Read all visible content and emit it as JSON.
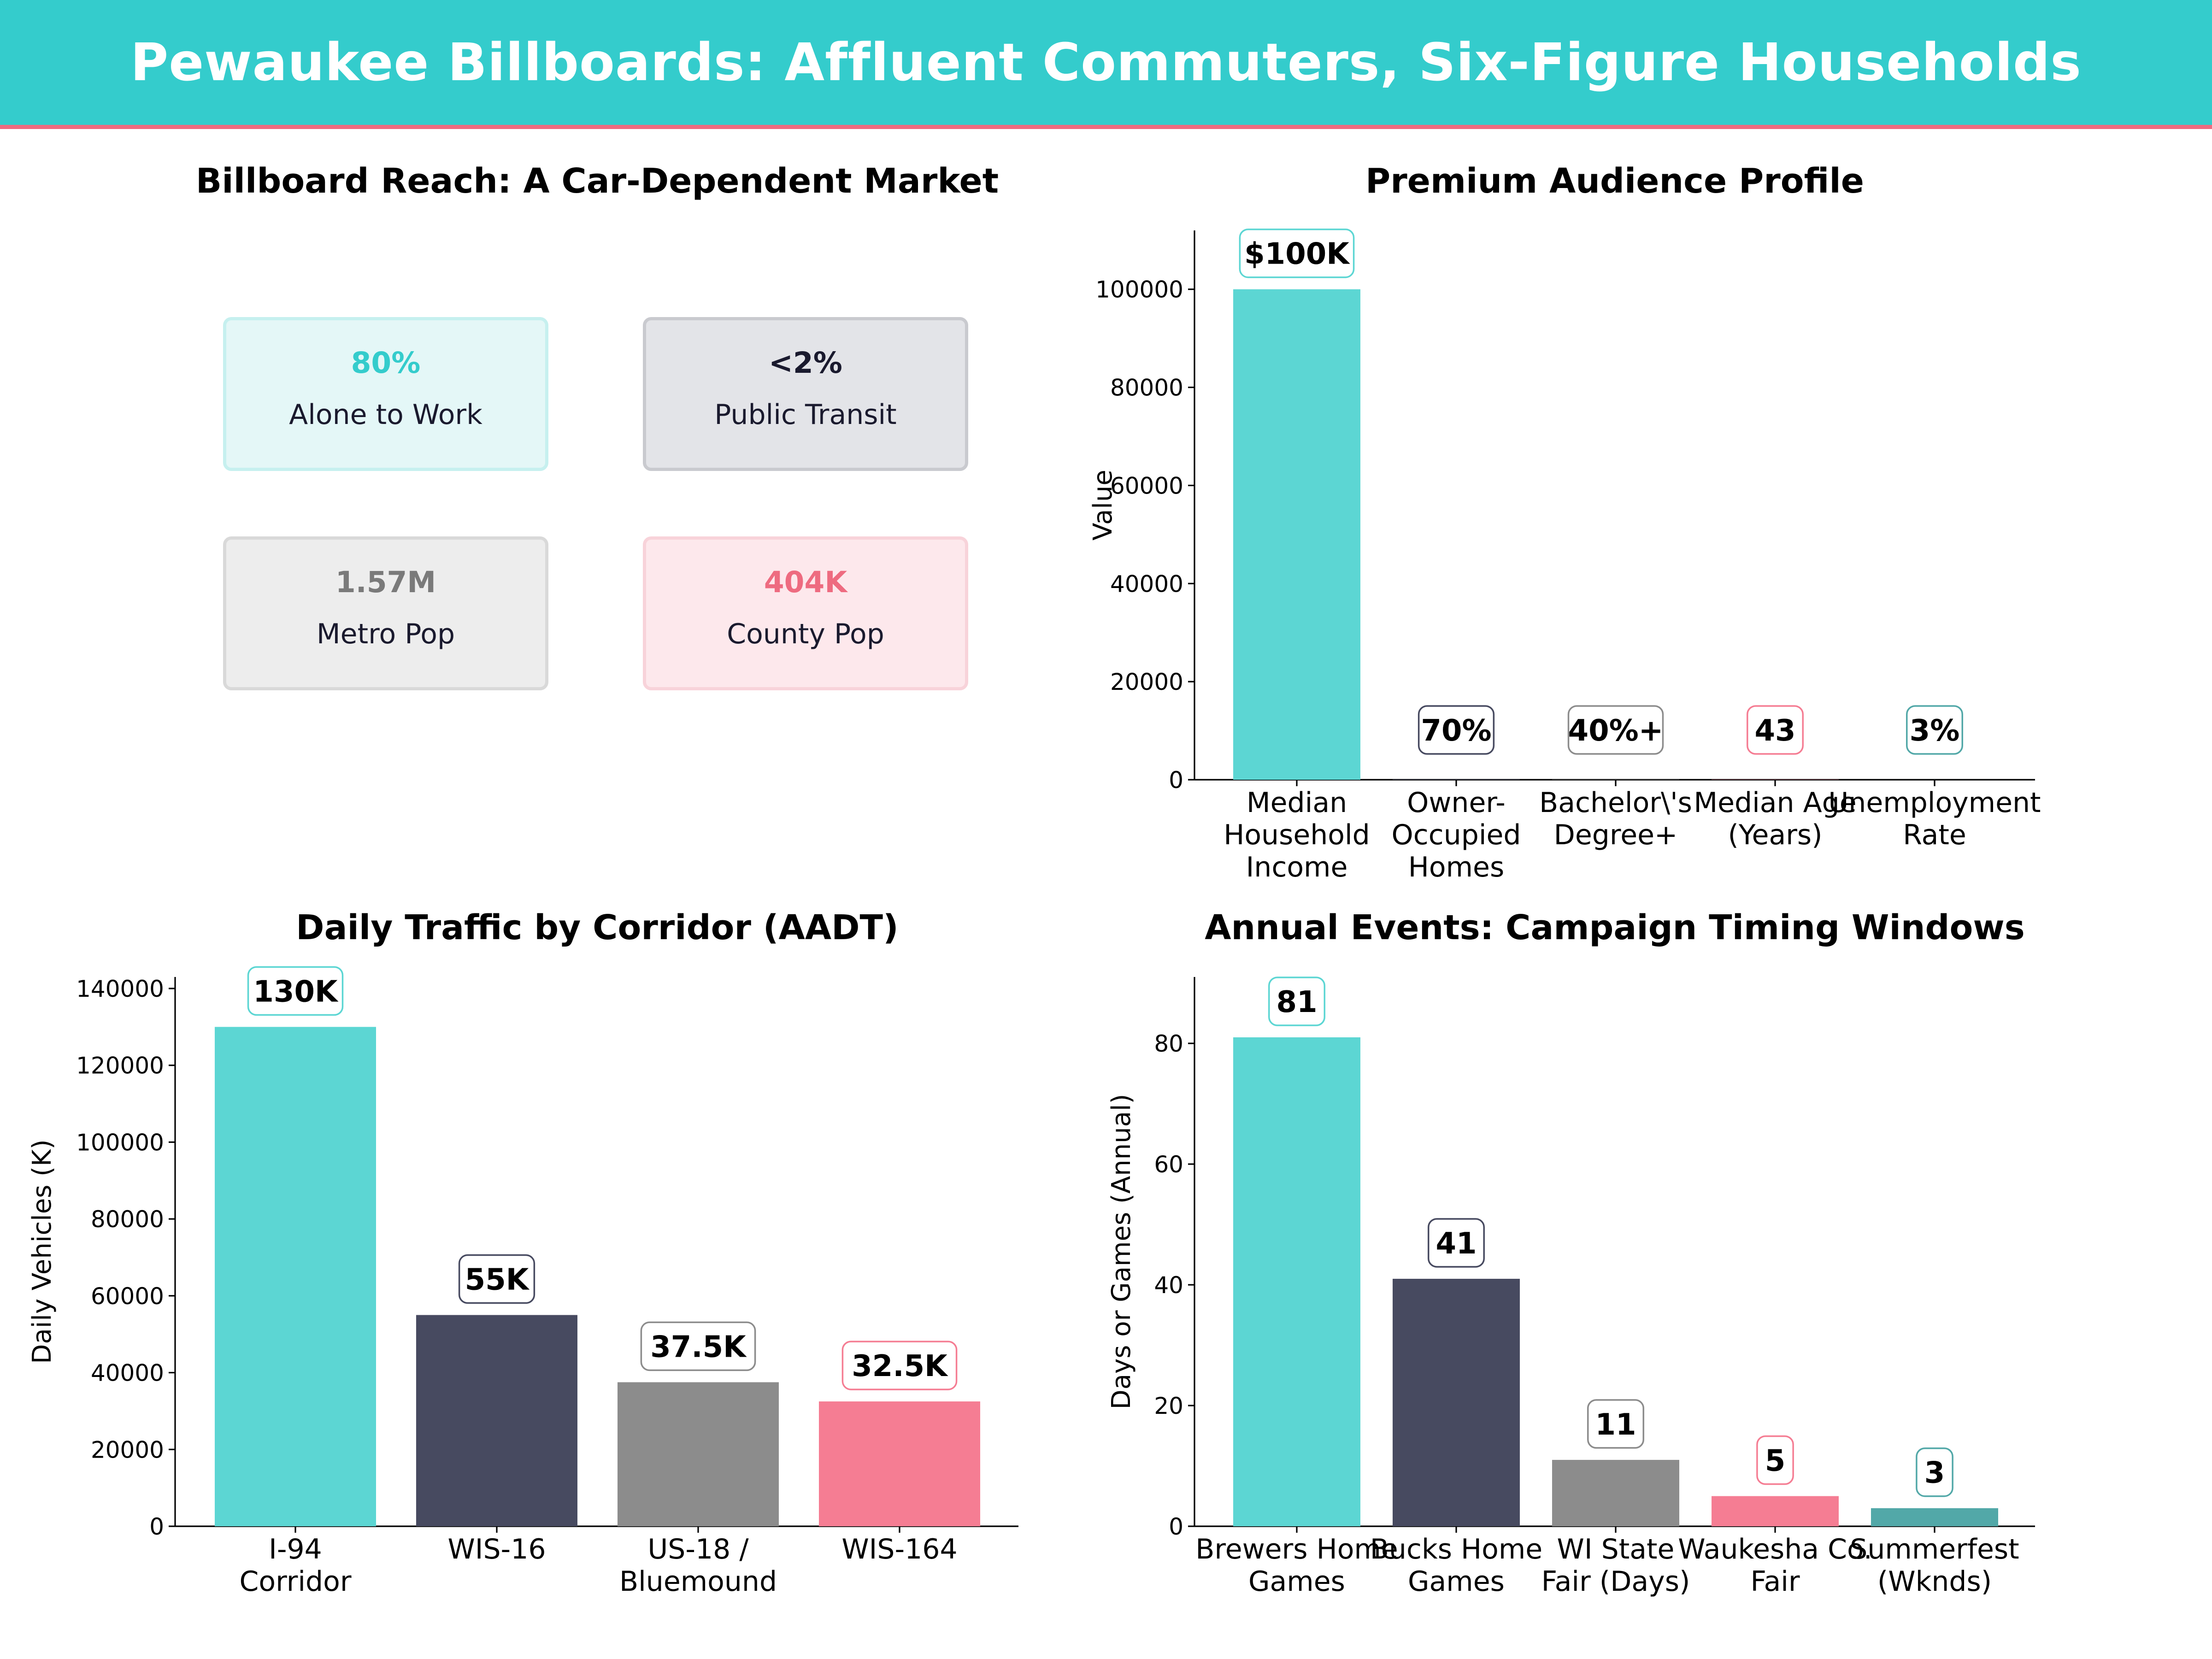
{
  "header": {
    "title": "Pewaukee Billboards: Affluent Commuters, Six-Figure Households"
  },
  "colors": {
    "banner": "#34CCCC",
    "banner_rule": "#EE6B80",
    "teal": "#5CD6D3",
    "navy": "#474A60",
    "gray": "#8C8C8C",
    "pink": "#F57D93",
    "dark_teal": "#52A8A8"
  },
  "kpi_panel": {
    "title": "Billboard Reach: A Car-Dependent Market",
    "cards": [
      {
        "value": "80%",
        "label": "Alone to Work",
        "value_color": "#34CCCC",
        "bg": "#E4F7F7",
        "border": "#C6F0EF"
      },
      {
        "value": "<2%",
        "label": "Public Transit",
        "value_color": "#1a1a2e",
        "bg": "#E3E4E8",
        "border": "#C9CACF"
      },
      {
        "value": "1.57M",
        "label": "Metro Pop",
        "value_color": "#7a7a7a",
        "bg": "#EDEDED",
        "border": "#D9D9D9"
      },
      {
        "value": "404K",
        "label": "County Pop",
        "value_color": "#EE6B80",
        "bg": "#FDE8EC",
        "border": "#F8D3DA"
      }
    ]
  },
  "chart_data": [
    {
      "id": "audience",
      "type": "bar",
      "title": "Premium Audience Profile",
      "xlabel": "",
      "ylabel": "Value",
      "categories": [
        [
          "Median",
          "Household",
          "Income"
        ],
        [
          "Owner-",
          "Occupied",
          "Homes"
        ],
        [
          "Bachelor\\'s",
          "Degree+"
        ],
        [
          "Median Age",
          "(Years)"
        ],
        [
          "Unemployment",
          "Rate"
        ]
      ],
      "values": [
        100000,
        70,
        40,
        43,
        3
      ],
      "data_labels": [
        "$100K",
        "70%",
        "40%+",
        "43",
        "3%"
      ],
      "bar_colors": [
        "#5CD6D3",
        "#474A60",
        "#8C8C8C",
        "#F57D93",
        "#52A8A8"
      ],
      "yticks": [
        0,
        20000,
        40000,
        60000,
        80000,
        100000
      ],
      "ylim": [
        0,
        112000
      ],
      "grid": false
    },
    {
      "id": "traffic",
      "type": "bar",
      "title": "Daily Traffic by Corridor (AADT)",
      "xlabel": "",
      "ylabel": "Daily Vehicles (K)",
      "categories": [
        [
          "I-94",
          "Corridor"
        ],
        [
          "WIS-16"
        ],
        [
          "US-18 /",
          "Bluemound"
        ],
        [
          "WIS-164"
        ]
      ],
      "values": [
        130000,
        55000,
        37500,
        32500
      ],
      "data_labels": [
        "130K",
        "55K",
        "37.5K",
        "32.5K"
      ],
      "bar_colors": [
        "#5CD6D3",
        "#474A60",
        "#8C8C8C",
        "#F57D93"
      ],
      "yticks": [
        0,
        20000,
        40000,
        60000,
        80000,
        100000,
        120000,
        140000
      ],
      "ylim": [
        0,
        143000
      ],
      "grid": false
    },
    {
      "id": "events",
      "type": "bar",
      "title": "Annual Events: Campaign Timing Windows",
      "xlabel": "",
      "ylabel": "Days or Games (Annual)",
      "categories": [
        [
          "Brewers Home",
          "Games"
        ],
        [
          "Bucks Home",
          "Games"
        ],
        [
          "WI State",
          "Fair (Days)"
        ],
        [
          "Waukesha Co.",
          "Fair"
        ],
        [
          "Summerfest",
          "(Wknds)"
        ]
      ],
      "values": [
        81,
        41,
        11,
        5,
        3
      ],
      "data_labels": [
        "81",
        "41",
        "11",
        "5",
        "3"
      ],
      "bar_colors": [
        "#5CD6D3",
        "#474A60",
        "#8C8C8C",
        "#F57D93",
        "#52A8A8"
      ],
      "yticks": [
        0,
        20,
        40,
        60,
        80
      ],
      "ylim": [
        0,
        91
      ],
      "grid": false
    }
  ]
}
